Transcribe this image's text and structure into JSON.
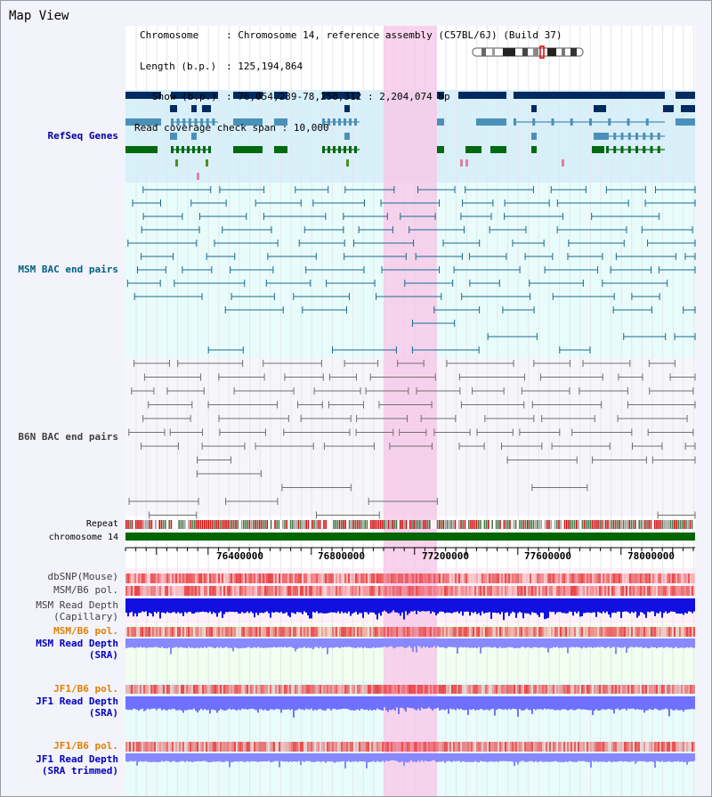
{
  "title": "Map View",
  "info": {
    "chromosome_key": "Chromosome",
    "chromosome_val": "Chromosome 14, reference assembly (C57BL/6J) (Build 37)",
    "length_key": "Length (b.p.)",
    "length_val": "125,194,864",
    "show_key": "Show (b.p.)",
    "show_val": "76,054,239-78,258,312 : 2,204,074 bp",
    "span_key": "Read coverage check span",
    "span_val": "10,000"
  },
  "tracks": {
    "refseq": "RefSeq Genes",
    "msm_bac": "MSM BAC end pairs",
    "b6n_bac": "B6N BAC end pairs",
    "repeat": "Repeat",
    "chromosome": "chromosome 14",
    "dbsnp": "dbSNP(Mouse)",
    "msm_b6_pol_1": "MSM/B6 pol.",
    "msm_read_cap_1": "MSM Read Depth",
    "msm_read_cap_2": "(Capillary)",
    "msm_b6_pol_2": "MSM/B6 pol.",
    "msm_read_sra_1": "MSM Read Depth",
    "msm_read_sra_2": "(SRA)",
    "jf1_b6_pol_1": "JF1/B6 pol.",
    "jf1_read_sra_1": "JF1 Read Depth",
    "jf1_read_sra_2": "(SRA)",
    "jf1_b6_pol_2": "JF1/B6 pol.",
    "jf1_read_trim_1": "JF1 Read Depth",
    "jf1_read_trim_2": "(SRA trimmed)"
  },
  "scale_ticks": [
    "76400000",
    "76800000",
    "77200000",
    "77600000",
    "78000000"
  ],
  "colors": {
    "refseq_label": "#0000a0",
    "msm_label": "#006080",
    "b6n_label": "#404040",
    "orange_label": "#e08000",
    "blue_label": "#0000c0",
    "highlight": "#f8c8e8",
    "chrom_bar": "#006600"
  }
}
